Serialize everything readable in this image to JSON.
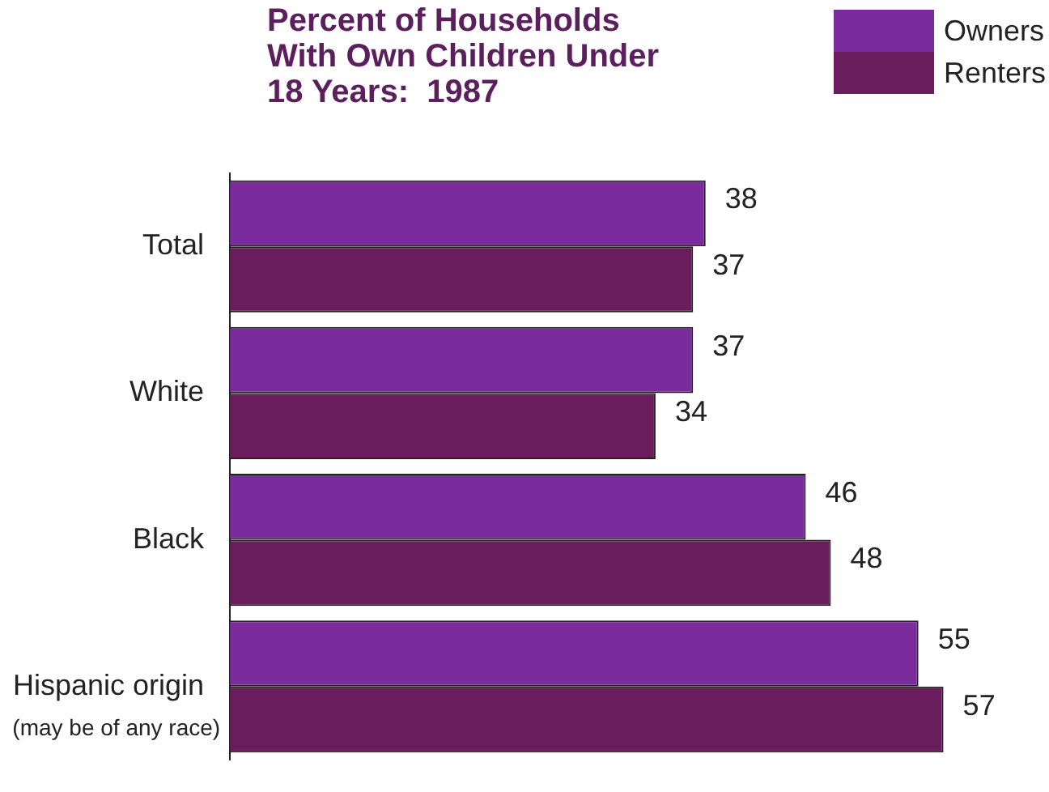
{
  "chart_data": {
    "type": "bar",
    "orientation": "horizontal",
    "title": "Percent of Households\nWith Own Children Under\n18 Years:  1987",
    "categories": [
      "Total",
      "White",
      "Black",
      "Hispanic origin"
    ],
    "series": [
      {
        "name": "Owners",
        "color": "#7b2c9c",
        "values": [
          38,
          37,
          46,
          55
        ]
      },
      {
        "name": "Renters",
        "color": "#6a1d5c",
        "values": [
          37,
          34,
          48,
          57
        ]
      }
    ],
    "data_labels": true,
    "legend": "top right",
    "tick_labels": "y",
    "annotations": [
      "(may be of any race)"
    ]
  }
}
